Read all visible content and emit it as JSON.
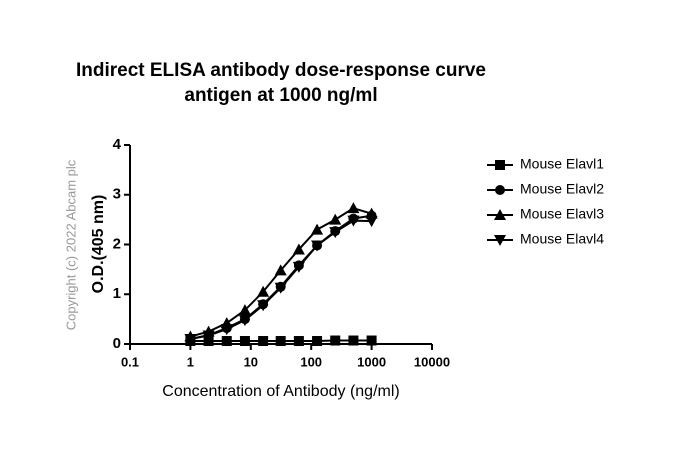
{
  "chart_data": {
    "type": "line",
    "title": "Indirect ELISA antibody dose-response curve",
    "subtitle": "antigen at 1000 ng/ml",
    "watermark": "Copyright (c) 2022 Abcam plc",
    "x_label": "Concentration of Antibody (ng/ml)",
    "y_label": "O.D.(405 nm)",
    "x_scale": "log",
    "x": [
      1,
      2,
      4,
      8,
      16,
      31.25,
      62.5,
      125,
      250,
      500,
      1000
    ],
    "series": [
      {
        "name": "Mouse Elavl1",
        "color": "#000000",
        "marker": "square",
        "values": [
          0.06,
          0.06,
          0.06,
          0.06,
          0.06,
          0.06,
          0.06,
          0.06,
          0.07,
          0.07,
          0.07
        ]
      },
      {
        "name": "Mouse Elavl2",
        "color": "#000000",
        "marker": "circle",
        "values": [
          0.1,
          0.18,
          0.32,
          0.5,
          0.8,
          1.15,
          1.58,
          1.98,
          2.27,
          2.52,
          2.58
        ]
      },
      {
        "name": "Mouse Elavl3",
        "color": "#000000",
        "marker": "triangle-up",
        "values": [
          0.15,
          0.25,
          0.42,
          0.68,
          1.05,
          1.48,
          1.9,
          2.3,
          2.5,
          2.73,
          2.62
        ]
      },
      {
        "name": "Mouse Elavl4",
        "color": "#000000",
        "marker": "triangle-down",
        "values": [
          0.1,
          0.17,
          0.3,
          0.48,
          0.78,
          1.13,
          1.55,
          1.98,
          2.25,
          2.48,
          2.47
        ]
      }
    ],
    "xlim": [
      0.1,
      10000
    ],
    "xticks": [
      0.1,
      1,
      10,
      100,
      1000,
      10000
    ],
    "ylim": [
      0,
      4
    ],
    "yticks": [
      0,
      1,
      2,
      3,
      4
    ],
    "legend": "right",
    "grid": false
  }
}
